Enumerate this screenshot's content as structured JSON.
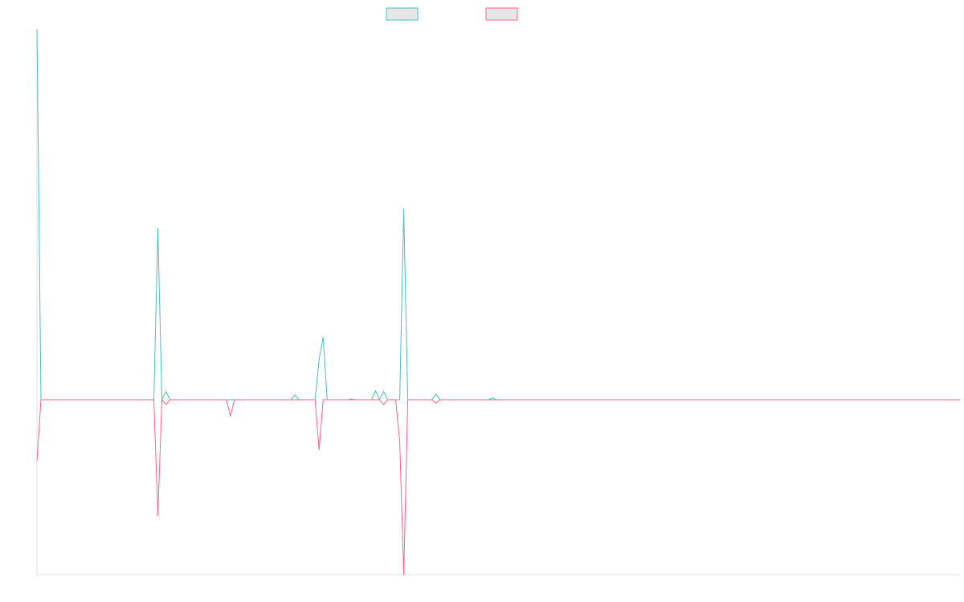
{
  "chart_data": {
    "type": "line",
    "ylim": [
      -47.2,
      100
    ],
    "series": [
      {
        "color": "#4bc0c0",
        "values": [
          100,
          0,
          0,
          0,
          0,
          0,
          0,
          0,
          0,
          0,
          0,
          0,
          0,
          0,
          0,
          0,
          0,
          0,
          0,
          0,
          0,
          0,
          0,
          0,
          0,
          0,
          0,
          0,
          0,
          0,
          46.3,
          0,
          2.2,
          0,
          0,
          0,
          0,
          0,
          0,
          0,
          0,
          0,
          0,
          0,
          0,
          0,
          0,
          0,
          0,
          0,
          0,
          0,
          0,
          0,
          0,
          0,
          0,
          0,
          0,
          0,
          0,
          0,
          0,
          0,
          1.3,
          0,
          0,
          0,
          0,
          0,
          10.8,
          16.9,
          0,
          0,
          0,
          0,
          0,
          0,
          0.2,
          0,
          0,
          0,
          0,
          0,
          2.4,
          0,
          2.2,
          0,
          0,
          0,
          0,
          51.5,
          0,
          0,
          0,
          0,
          0,
          0,
          0,
          1.5,
          0,
          0,
          0,
          0,
          0,
          0,
          0,
          0,
          0,
          0,
          0,
          0,
          0,
          0.5,
          0,
          0,
          0,
          0,
          0,
          0,
          0,
          0,
          0,
          0,
          0,
          0,
          0,
          0,
          0,
          0,
          0,
          0,
          0,
          0,
          0,
          0,
          0,
          0,
          0,
          0,
          0,
          0,
          0,
          0,
          0,
          0,
          0,
          0,
          0,
          0,
          0,
          0,
          0,
          0,
          0,
          0,
          0,
          0,
          0,
          0,
          0,
          0,
          0,
          0,
          0,
          0,
          0,
          0,
          0,
          0,
          0,
          0,
          0,
          0,
          0,
          0,
          0,
          0,
          0,
          0,
          0,
          0,
          0,
          0,
          0,
          0,
          0,
          0,
          0,
          0,
          0,
          0,
          0,
          0,
          0,
          0,
          0,
          0,
          0,
          0,
          0,
          0,
          0,
          0,
          0,
          0,
          0,
          0,
          0,
          0,
          0,
          0,
          0,
          0,
          0,
          0,
          0,
          0,
          0,
          0,
          0,
          0,
          0,
          0,
          0,
          0,
          0,
          0,
          0,
          0
        ]
      },
      {
        "color": "#ff6384",
        "values": [
          -16.5,
          0,
          0,
          0,
          0,
          0,
          0,
          0,
          0,
          0,
          0,
          0,
          0,
          0,
          0,
          0,
          0,
          0,
          0,
          0,
          0,
          0,
          0,
          0,
          0,
          0,
          0,
          0,
          0,
          0,
          -31.4,
          0,
          -1.3,
          0,
          0,
          0,
          0,
          0,
          0,
          0,
          0,
          0,
          0,
          0,
          0,
          0,
          0,
          0,
          -4.5,
          0,
          0,
          0,
          0,
          0,
          0,
          0,
          0,
          0,
          0,
          0,
          0,
          0,
          0,
          0,
          0,
          0,
          0,
          0,
          0,
          0,
          -13.6,
          0,
          0,
          0,
          0,
          0,
          0,
          0,
          0,
          0,
          0,
          0,
          0,
          0,
          0,
          0,
          -1.3,
          0,
          0,
          0,
          -11.3,
          -47.2,
          0,
          0,
          0,
          0,
          0,
          0,
          0,
          -0.9,
          0,
          0,
          0,
          0,
          0,
          0,
          0,
          0,
          0,
          0,
          0,
          0,
          0,
          0,
          0,
          0,
          0,
          0,
          0,
          0,
          0,
          0,
          0,
          0,
          0,
          0,
          0,
          0,
          0,
          0,
          0,
          0,
          0,
          0,
          0,
          0,
          0,
          0,
          0,
          0,
          0,
          0,
          0,
          0,
          0,
          0,
          0,
          0,
          0,
          0,
          0,
          0,
          0,
          0,
          0,
          0,
          0,
          0,
          0,
          0,
          0,
          0,
          0,
          0,
          0,
          0,
          0,
          0,
          0,
          0,
          0,
          0,
          0,
          0,
          0,
          0,
          0,
          0,
          0,
          0,
          0,
          0,
          0,
          0,
          0,
          0,
          0,
          0,
          0,
          0,
          0,
          0,
          0,
          0,
          0,
          0,
          0,
          0,
          0,
          0,
          0,
          0,
          0,
          0,
          0,
          0,
          0,
          0,
          0,
          0,
          0,
          0,
          0,
          0,
          0,
          0,
          0,
          0,
          0,
          0,
          0,
          0,
          0,
          0,
          0,
          0,
          0,
          0,
          0,
          0
        ]
      }
    ]
  }
}
